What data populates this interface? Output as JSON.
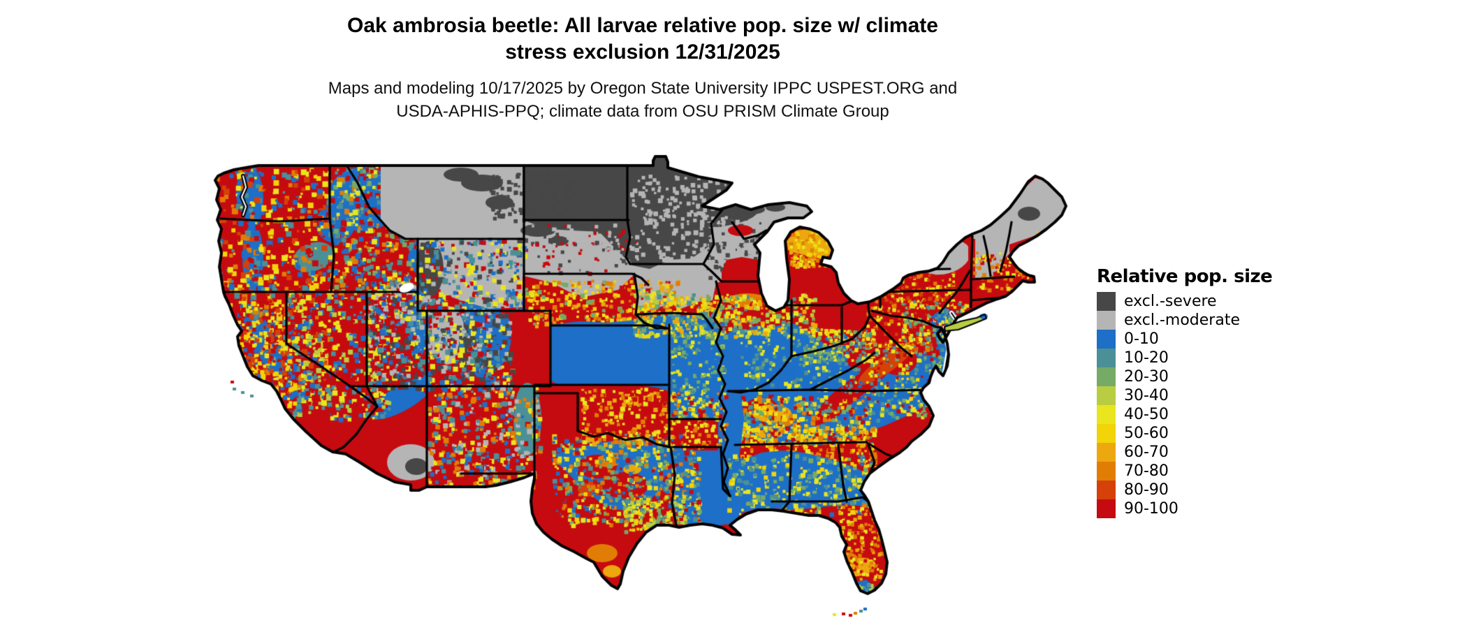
{
  "header": {
    "title_line1": "Oak ambrosia beetle: All larvae relative pop. size w/ climate",
    "title_line2": "stress exclusion 12/31/2025",
    "subtitle_line1": "Maps and modeling 10/17/2025 by Oregon State University IPPC USPEST.ORG and",
    "subtitle_line2": "USDA-APHIS-PPQ; climate data from OSU PRISM Climate Group"
  },
  "legend": {
    "title": "Relative pop. size",
    "entries": [
      {
        "key": "severe",
        "label": "excl.-severe",
        "color": "#474747"
      },
      {
        "key": "moderate",
        "label": "excl.-moderate",
        "color": "#b5b5b5"
      },
      {
        "key": "b0",
        "label": "0-10",
        "color": "#1d6fc7"
      },
      {
        "key": "b10",
        "label": "10-20",
        "color": "#4b9096"
      },
      {
        "key": "b20",
        "label": "20-30",
        "color": "#75ab66"
      },
      {
        "key": "b30",
        "label": "30-40",
        "color": "#b8cd41"
      },
      {
        "key": "b40",
        "label": "40-50",
        "color": "#e9e51f"
      },
      {
        "key": "b50",
        "label": "50-60",
        "color": "#f2d408"
      },
      {
        "key": "b60",
        "label": "60-70",
        "color": "#eca80e"
      },
      {
        "key": "b70",
        "label": "70-80",
        "color": "#e17d05"
      },
      {
        "key": "b80",
        "label": "80-90",
        "color": "#d54109"
      },
      {
        "key": "b90",
        "label": "90-100",
        "color": "#c50b10"
      }
    ]
  },
  "map": {
    "region": "Conterminous United States",
    "background": "#ffffff",
    "boundary_color": "#000000"
  }
}
